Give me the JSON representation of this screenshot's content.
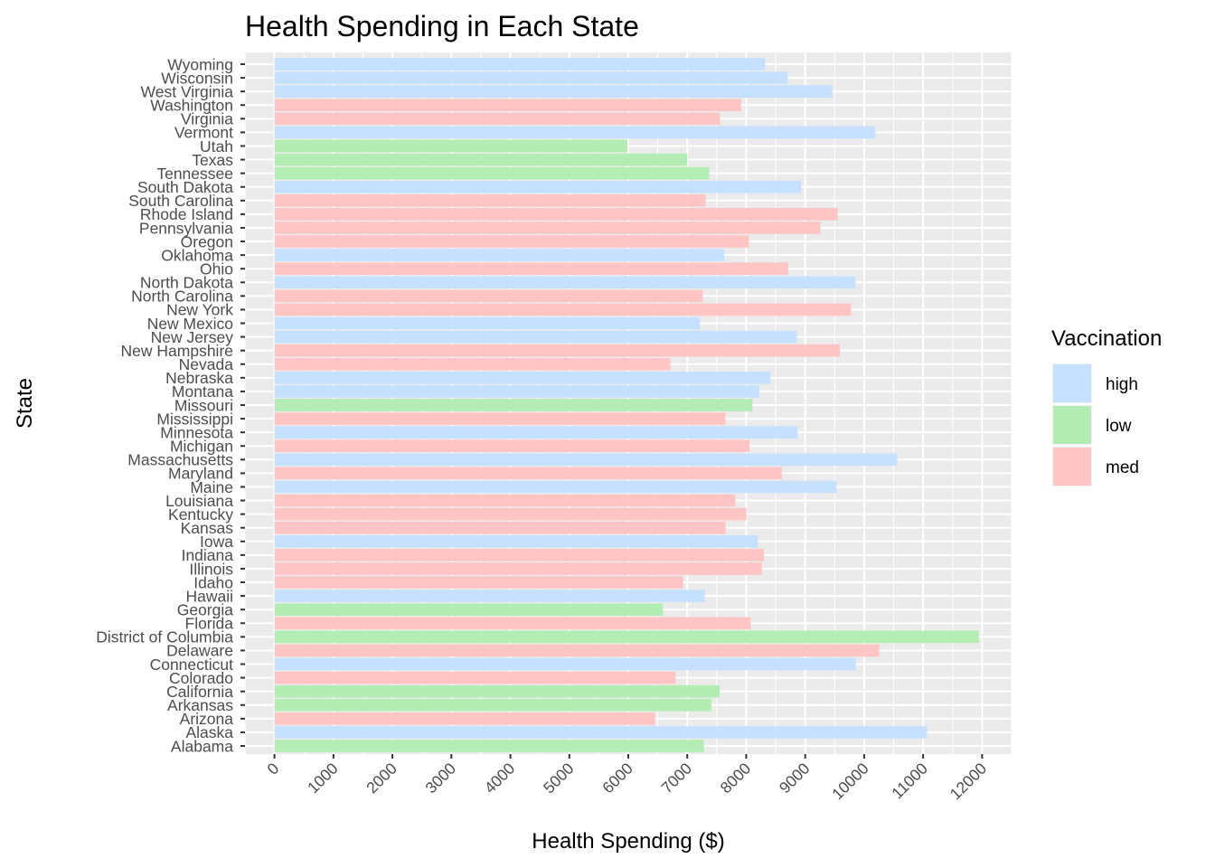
{
  "chart_data": {
    "type": "bar",
    "orientation": "horizontal",
    "title": "Health Spending in Each State",
    "xlabel": "Health Spending ($)",
    "ylabel": "State",
    "xlim": [
      -500,
      12500
    ],
    "x_ticks": [
      0,
      1000,
      2000,
      3000,
      4000,
      5000,
      6000,
      7000,
      8000,
      9000,
      10000,
      11000,
      12000
    ],
    "grid": true,
    "legend": {
      "title": "Vaccination",
      "placement": "right",
      "entries": [
        {
          "key": "high",
          "label": "high",
          "color": "#c6e0ff"
        },
        {
          "key": "low",
          "label": "low",
          "color": "#b3edb3"
        },
        {
          "key": "med",
          "label": "med",
          "color": "#ffc4c4"
        }
      ]
    },
    "categories": [
      "Alabama",
      "Alaska",
      "Arizona",
      "Arkansas",
      "California",
      "Colorado",
      "Connecticut",
      "Delaware",
      "District of Columbia",
      "Florida",
      "Georgia",
      "Hawaii",
      "Idaho",
      "Illinois",
      "Indiana",
      "Iowa",
      "Kansas",
      "Kentucky",
      "Louisiana",
      "Maine",
      "Maryland",
      "Massachusetts",
      "Michigan",
      "Minnesota",
      "Mississippi",
      "Missouri",
      "Montana",
      "Nebraska",
      "Nevada",
      "New Hampshire",
      "New Jersey",
      "New Mexico",
      "New York",
      "North Carolina",
      "North Dakota",
      "Ohio",
      "Oklahoma",
      "Oregon",
      "Pennsylvania",
      "Rhode Island",
      "South Carolina",
      "South Dakota",
      "Tennessee",
      "Texas",
      "Utah",
      "Vermont",
      "Virginia",
      "Washington",
      "West Virginia",
      "Wisconsin",
      "Wyoming"
    ],
    "values": [
      7281,
      11064,
      6452,
      7408,
      7549,
      6804,
      9859,
      10254,
      11944,
      8076,
      6587,
      7299,
      6927,
      8262,
      8300,
      8200,
      7651,
      8004,
      7815,
      9531,
      8602,
      10559,
      8055,
      8871,
      7646,
      8107,
      8221,
      8412,
      6714,
      9589,
      8859,
      7214,
      9778,
      7264,
      9851,
      8712,
      7627,
      8044,
      9258,
      9551,
      7311,
      8933,
      7372,
      6998,
      5982,
      10190,
      7556,
      7913,
      9462,
      8702,
      8320
    ],
    "groups": [
      "low",
      "high",
      "med",
      "low",
      "low",
      "med",
      "high",
      "med",
      "low",
      "med",
      "low",
      "high",
      "med",
      "med",
      "med",
      "high",
      "med",
      "med",
      "med",
      "high",
      "med",
      "high",
      "med",
      "high",
      "med",
      "low",
      "high",
      "high",
      "med",
      "med",
      "high",
      "high",
      "med",
      "med",
      "high",
      "med",
      "high",
      "med",
      "med",
      "med",
      "med",
      "high",
      "low",
      "low",
      "low",
      "high",
      "med",
      "med",
      "high",
      "high",
      "high"
    ]
  }
}
